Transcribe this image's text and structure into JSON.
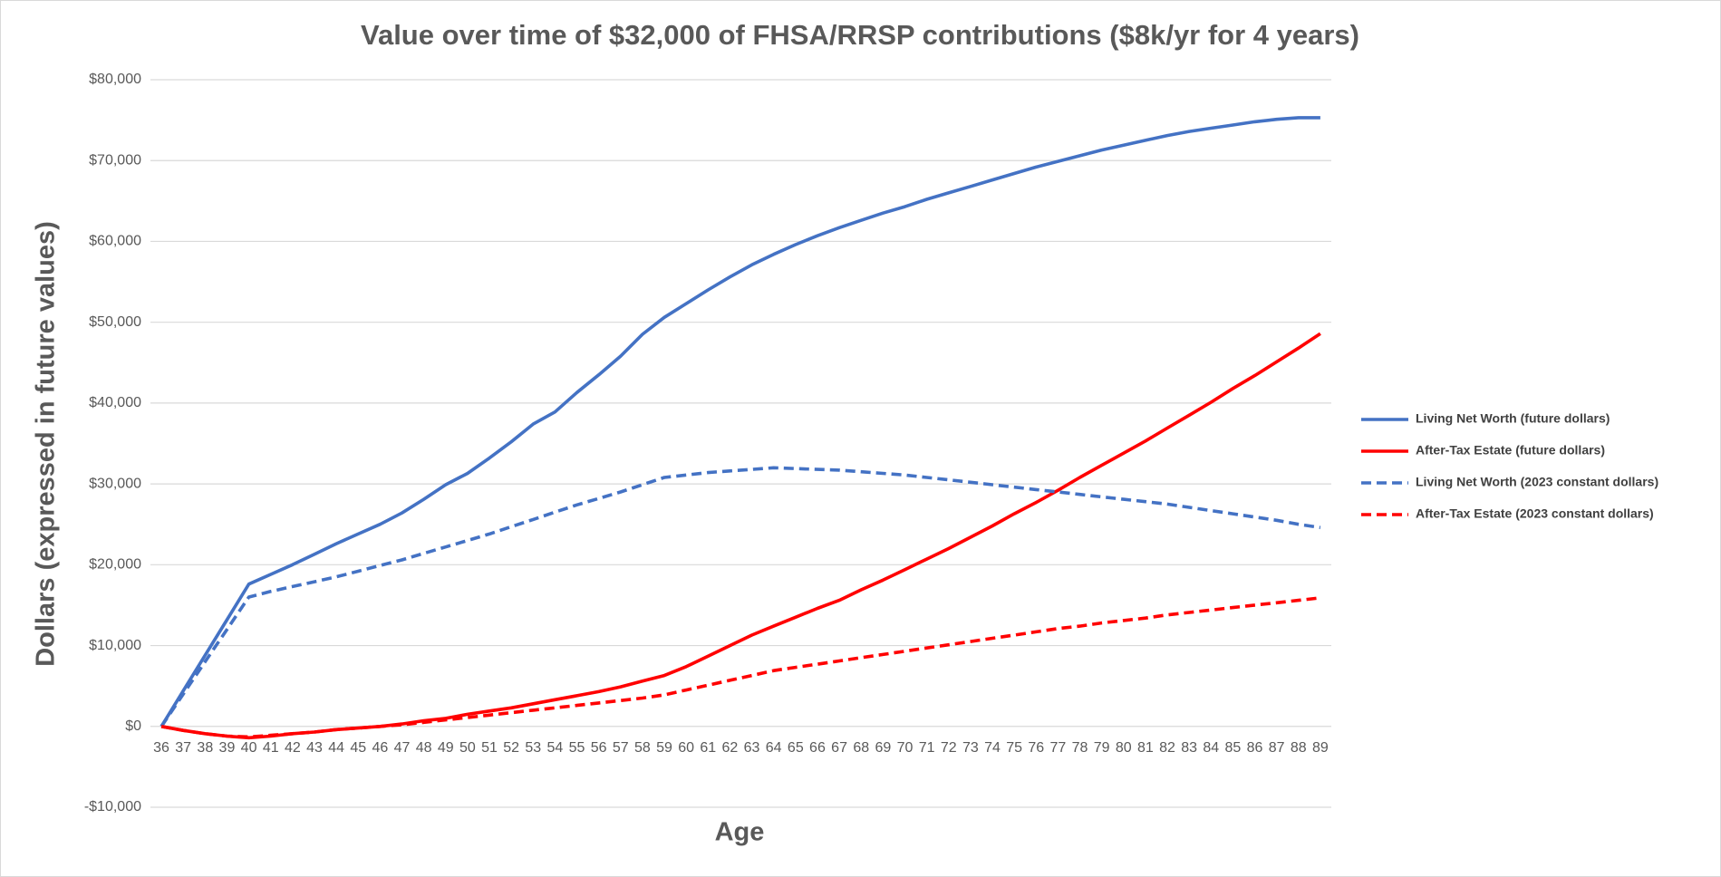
{
  "chart_data": {
    "type": "line",
    "title": "Value over time of $32,000 of FHSA/RRSP contributions  ($8k/yr for 4 years)",
    "x_label": "Age",
    "y_label": "Dollars (expressed in future values)",
    "categories": [
      "36",
      "37",
      "38",
      "39",
      "40",
      "41",
      "42",
      "43",
      "44",
      "45",
      "46",
      "47",
      "48",
      "49",
      "50",
      "51",
      "52",
      "53",
      "54",
      "55",
      "56",
      "57",
      "58",
      "59",
      "60",
      "61",
      "62",
      "63",
      "64",
      "65",
      "66",
      "67",
      "68",
      "69",
      "70",
      "71",
      "72",
      "73",
      "74",
      "75",
      "76",
      "77",
      "78",
      "79",
      "80",
      "81",
      "82",
      "83",
      "84",
      "85",
      "86",
      "87",
      "88",
      "89"
    ],
    "ylim": [
      -10000,
      80000
    ],
    "yticks": [
      {
        "value": -10000,
        "label": "-$10,000"
      },
      {
        "value": 0,
        "label": "$0"
      },
      {
        "value": 10000,
        "label": "$10,000"
      },
      {
        "value": 20000,
        "label": "$20,000"
      },
      {
        "value": 30000,
        "label": "$30,000"
      },
      {
        "value": 40000,
        "label": "$40,000"
      },
      {
        "value": 50000,
        "label": "$50,000"
      },
      {
        "value": 60000,
        "label": "$60,000"
      },
      {
        "value": 70000,
        "label": "$70,000"
      },
      {
        "value": 80000,
        "label": "$80,000"
      }
    ],
    "grid": true,
    "legend": "right",
    "series": [
      {
        "name": "Living Net Worth (future dollars)",
        "color": "#4472c4",
        "dashed": false,
        "values": [
          0,
          4400,
          8800,
          13200,
          17600,
          18800,
          20000,
          21300,
          22600,
          23800,
          25000,
          26400,
          28100,
          29900,
          31300,
          33200,
          35200,
          37400,
          38900,
          41300,
          43500,
          45800,
          48500,
          50600,
          52300,
          54000,
          55600,
          57100,
          58400,
          59600,
          60700,
          61700,
          62600,
          63500,
          64300,
          65200,
          66000,
          66800,
          67600,
          68400,
          69200,
          69900,
          70600,
          71300,
          71900,
          72500,
          73100,
          73600,
          74000,
          74400,
          74800,
          75100,
          75300,
          75300
        ]
      },
      {
        "name": "After-Tax Estate (future dollars)",
        "color": "#ff0000",
        "dashed": false,
        "values": [
          0,
          -500,
          -900,
          -1200,
          -1400,
          -1200,
          -900,
          -700,
          -400,
          -200,
          0,
          300,
          700,
          1000,
          1500,
          1900,
          2300,
          2800,
          3300,
          3800,
          4300,
          4900,
          5600,
          6300,
          7400,
          8700,
          10000,
          11300,
          12400,
          13500,
          14600,
          15600,
          16900,
          18100,
          19400,
          20700,
          22000,
          23400,
          24800,
          26300,
          27700,
          29200,
          30800,
          32300,
          33800,
          35300,
          36900,
          38500,
          40100,
          41800,
          43400,
          45100,
          46800,
          48600
        ]
      },
      {
        "name": "Living Net Worth (2023 constant dollars)",
        "color": "#4472c4",
        "dashed": true,
        "values": [
          0,
          4000,
          8000,
          12000,
          16000,
          16700,
          17300,
          17900,
          18500,
          19200,
          19900,
          20600,
          21400,
          22200,
          23000,
          23800,
          24700,
          25600,
          26500,
          27400,
          28200,
          29000,
          29900,
          30800,
          31100,
          31400,
          31600,
          31800,
          32000,
          31900,
          31800,
          31700,
          31500,
          31300,
          31100,
          30800,
          30500,
          30200,
          29900,
          29600,
          29300,
          29000,
          28700,
          28400,
          28100,
          27800,
          27500,
          27100,
          26700,
          26300,
          25900,
          25500,
          25000,
          24600
        ]
      },
      {
        "name": "After-Tax Estate (2023 constant dollars)",
        "color": "#ff0000",
        "dashed": true,
        "values": [
          0,
          -500,
          -900,
          -1200,
          -1300,
          -1100,
          -900,
          -700,
          -400,
          -200,
          0,
          200,
          500,
          800,
          1100,
          1400,
          1700,
          2000,
          2300,
          2600,
          2900,
          3200,
          3500,
          3900,
          4500,
          5100,
          5700,
          6300,
          6900,
          7300,
          7700,
          8100,
          8500,
          8900,
          9300,
          9700,
          10100,
          10500,
          10900,
          11300,
          11700,
          12100,
          12400,
          12800,
          13100,
          13400,
          13800,
          14100,
          14400,
          14700,
          15000,
          15300,
          15600,
          15900
        ]
      }
    ]
  }
}
